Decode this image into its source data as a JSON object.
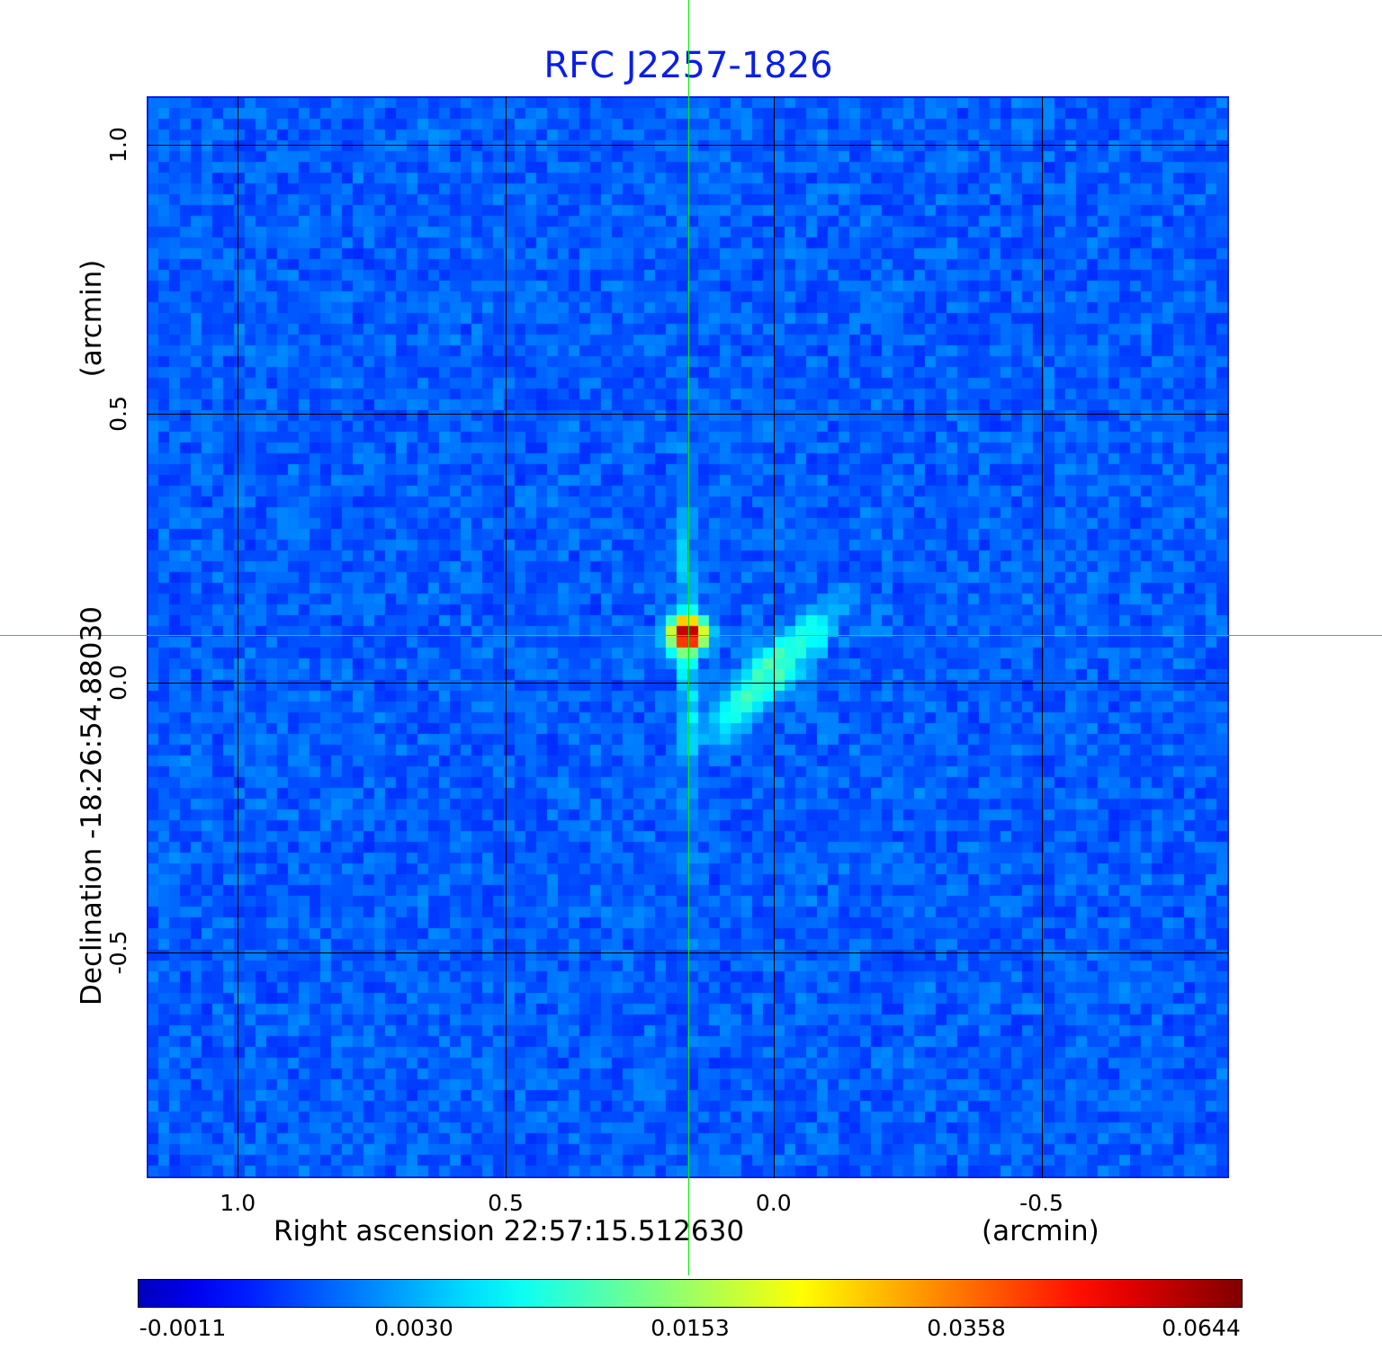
{
  "chart_data": {
    "type": "heatmap",
    "title": "RFC J2257-1826",
    "title_color": "#0a1fe6",
    "xlabel": "Right ascension  22:57:15.512630",
    "xunit": "(arcmin)",
    "ylabel": "Declination  -18:26:54.88030",
    "yunit": "(arcmin)",
    "x_axis_direction": "decreasing to the right",
    "xlim": [
      1.17,
      -0.85
    ],
    "ylim": [
      -0.92,
      1.09
    ],
    "x_ticks": [
      "1.0",
      "0.5",
      "0.0",
      "-0.5"
    ],
    "x_tick_values": [
      1.0,
      0.5,
      0.0,
      -0.5
    ],
    "y_ticks": [
      "1.0",
      "0.5",
      "0.0",
      "-0.5"
    ],
    "y_tick_values": [
      1.0,
      0.5,
      0.0,
      -0.5
    ],
    "grid": true,
    "grid_color": "#000000",
    "crosshair": {
      "x": 0.16,
      "y": 0.09,
      "color": "#00ee00"
    },
    "colormap": "jet",
    "colorbar_ticks": [
      "-0.0011",
      "0.0030",
      "0.0153",
      "0.0358",
      "0.0644"
    ],
    "colorbar_tick_values": [
      -0.0011,
      0.003,
      0.0153,
      0.0358,
      0.0644
    ],
    "background_level": 0.0,
    "sources": [
      {
        "name": "peak",
        "x": 0.16,
        "y": 0.09,
        "peak": 0.0644
      },
      {
        "name": "diffuse-tail",
        "x": 0.0,
        "y": 0.02,
        "peak": 0.009
      }
    ]
  }
}
